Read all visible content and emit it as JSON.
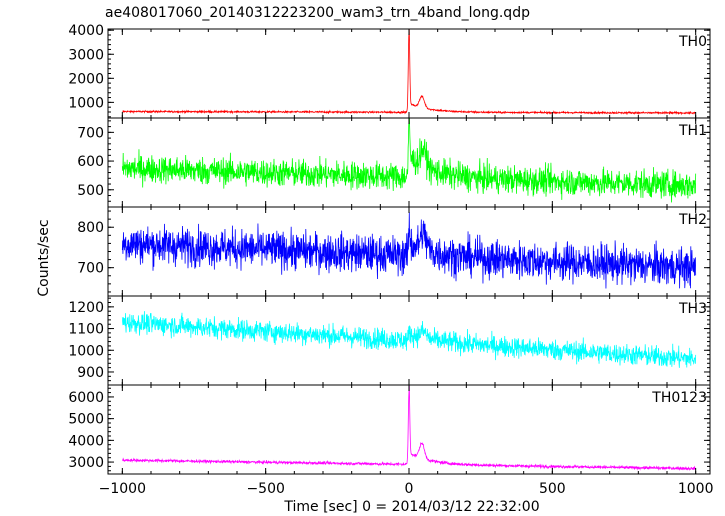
{
  "chart_data": {
    "type": "line",
    "title": "ae408017060_20140312223200_wam3_trn_4band_long.qdp",
    "xlabel": "Time [sec] 0 = 2014/03/12 22:32:00",
    "ylabel": "Counts/sec",
    "xlim": [
      -1050,
      1050
    ],
    "x_ticks": [
      -1000,
      -500,
      0,
      500,
      1000
    ],
    "x_tick_labels": [
      "−1000",
      "−500",
      "0",
      "500",
      "1000"
    ],
    "grid": false,
    "panels": [
      {
        "name": "TH0",
        "color": "#ff0000",
        "ylim": [
          350,
          4050
        ],
        "y_ticks": [
          1000,
          2000,
          3000,
          4000
        ],
        "model": {
          "baseline_start": 620,
          "baseline_end": 560,
          "noise": 25,
          "peak": 3950,
          "peak_width": 3.5,
          "bump": 470,
          "bump_center": 45,
          "bump_width": 12,
          "tail": 360,
          "tail_decay": 70
        }
      },
      {
        "name": "TH1",
        "color": "#00ff00",
        "ylim": [
          440,
          750
        ],
        "y_ticks": [
          500,
          600,
          700
        ],
        "model": {
          "baseline_start": 575,
          "baseline_end": 515,
          "noise": 34,
          "peak": 735,
          "peak_width": 3.5,
          "bump": 60,
          "bump_center": 50,
          "bump_width": 15,
          "tail": 70,
          "tail_decay": 80
        }
      },
      {
        "name": "TH2",
        "color": "#0000ff",
        "ylim": [
          630,
          850
        ],
        "y_ticks": [
          700,
          800
        ],
        "model": {
          "baseline_start": 760,
          "baseline_end": 700,
          "noise": 33,
          "peak": 810,
          "peak_width": 4,
          "bump": 40,
          "bump_center": 50,
          "bump_width": 15,
          "tail": 30,
          "tail_decay": 80
        }
      },
      {
        "name": "TH3",
        "color": "#00ffff",
        "ylim": [
          840,
          1250
        ],
        "y_ticks": [
          900,
          1000,
          1100,
          1200
        ],
        "model": {
          "baseline_start": 1130,
          "baseline_end": 960,
          "noise": 34,
          "peak": 1150,
          "peak_width": 4,
          "bump": 30,
          "bump_center": 50,
          "bump_width": 15,
          "tail": 30,
          "tail_decay": 80
        }
      },
      {
        "name": "TH0123",
        "color": "#ff00ff",
        "ylim": [
          2450,
          6550
        ],
        "y_ticks": [
          3000,
          4000,
          5000,
          6000
        ],
        "model": {
          "baseline_start": 3090,
          "baseline_end": 2700,
          "noise": 45,
          "peak": 6450,
          "peak_width": 3.5,
          "bump": 700,
          "bump_center": 45,
          "bump_width": 12,
          "tail": 550,
          "tail_decay": 70
        }
      }
    ]
  }
}
